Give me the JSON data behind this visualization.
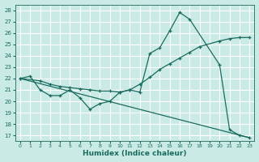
{
  "xlabel": "Humidex (Indice chaleur)",
  "xlim": [
    -0.5,
    23.5
  ],
  "ylim": [
    16.5,
    28.5
  ],
  "yticks": [
    17,
    18,
    19,
    20,
    21,
    22,
    23,
    24,
    25,
    26,
    27,
    28
  ],
  "xticks": [
    0,
    1,
    2,
    3,
    4,
    5,
    6,
    7,
    8,
    9,
    10,
    11,
    12,
    13,
    14,
    15,
    16,
    17,
    18,
    19,
    20,
    21,
    22,
    23
  ],
  "bg_color": "#caeae6",
  "grid_color": "#b0d8d4",
  "line_color": "#1a6b5e",
  "line1_x": [
    0,
    1,
    2,
    3,
    4,
    5,
    6,
    7,
    8,
    9,
    10,
    11,
    12,
    13,
    14,
    15,
    16,
    17,
    20,
    21,
    22,
    23
  ],
  "line1_y": [
    22,
    22.2,
    21.0,
    20.5,
    20.5,
    21.0,
    20.3,
    19.3,
    19.8,
    20.0,
    20.8,
    21.0,
    20.8,
    24.2,
    24.7,
    26.2,
    27.8,
    27.2,
    23.2,
    17.5,
    17.0,
    16.8
  ],
  "line2_x": [
    0,
    2,
    3,
    4,
    5,
    6,
    7,
    8,
    9,
    10,
    11,
    12,
    13,
    14,
    15,
    16,
    17,
    18,
    20,
    21,
    22,
    23
  ],
  "line2_y": [
    22,
    21.8,
    21.5,
    21.3,
    21.2,
    21.1,
    21.0,
    20.9,
    20.9,
    20.8,
    21.0,
    21.5,
    22.1,
    22.8,
    23.3,
    23.8,
    24.3,
    24.8,
    25.3,
    25.5,
    25.6,
    25.6
  ],
  "line3_x": [
    0,
    23
  ],
  "line3_y": [
    22.0,
    16.8
  ]
}
